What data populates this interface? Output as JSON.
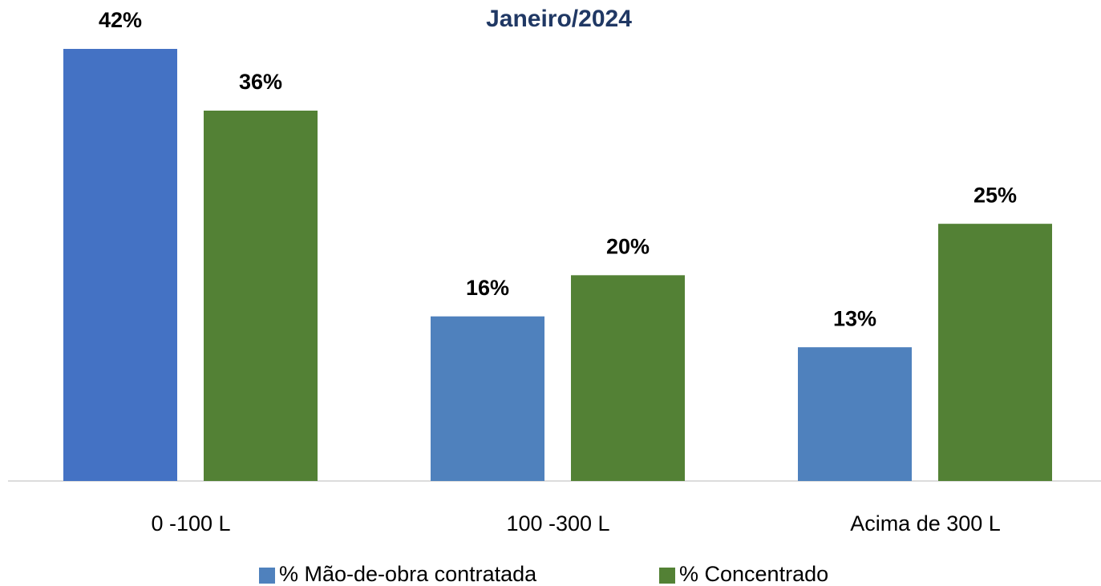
{
  "chart_data": {
    "type": "bar",
    "title": "Janeiro/2024",
    "categories": [
      "0 -100 L",
      "100 -300 L",
      "Acima de 300 L"
    ],
    "series": [
      {
        "name": "% Mão-de-obra contratada",
        "color": "#4f81bd",
        "colors": [
          "#4472c4",
          "#4f81bd",
          "#4f81bd"
        ],
        "values": [
          42,
          16,
          13
        ],
        "value_labels": [
          "42%",
          "16%",
          "13%"
        ]
      },
      {
        "name": "% Concentrado",
        "color": "#538135",
        "values": [
          36,
          20,
          25
        ],
        "value_labels": [
          "36%",
          "20%",
          "25%"
        ]
      }
    ],
    "ylim": [
      0,
      42
    ],
    "legend": "bottom"
  }
}
